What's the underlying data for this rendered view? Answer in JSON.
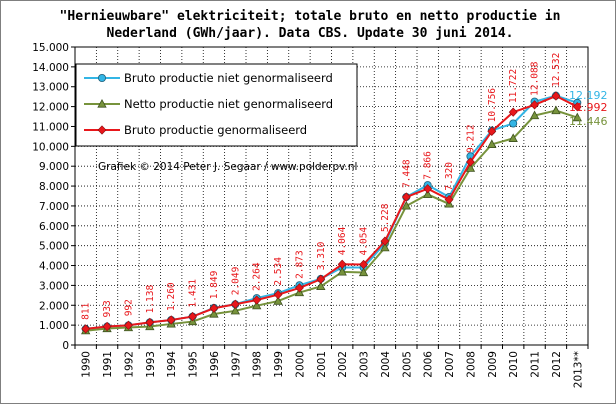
{
  "title_line1": "\"Hernieuwbare\"  elektriciteit; totale bruto en netto productie in",
  "title_line2": "Nederland (GWh/jaar). Data CBS. Update 30 juni 2014.",
  "credit": "Grafiek © 2014 Peter J. Segaar / www.polderpv.nl",
  "chart_data": {
    "type": "line",
    "title": "\"Hernieuwbare\"  elektriciteit; totale bruto en netto productie in Nederland (GWh/jaar). Data CBS. Update 30 juni 2014.",
    "categories": [
      "1990",
      "1991",
      "1992",
      "1993",
      "1994",
      "1995",
      "1996",
      "1997",
      "1998",
      "1999",
      "2000",
      "2001",
      "2002",
      "2003",
      "2004",
      "2005",
      "2006",
      "2007",
      "2008",
      "2009",
      "2010",
      "2011",
      "2012",
      "2013**"
    ],
    "y_ticks": [
      "0",
      "1.000",
      "2.000",
      "3.000",
      "4.000",
      "5.000",
      "6.000",
      "7.000",
      "8.000",
      "9.000",
      "10.000",
      "11.000",
      "12.000",
      "13.000",
      "14.000",
      "15.000"
    ],
    "ylim": [
      0,
      15000
    ],
    "grid": true,
    "legend_position": "top-left",
    "series": [
      {
        "name": "Bruto productie niet genormaliseerd",
        "color": "#33b5e5",
        "marker": "circle",
        "values": [
          810,
          930,
          990,
          1140,
          1260,
          1430,
          1870,
          2050,
          2360,
          2610,
          3010,
          3330,
          3900,
          3900,
          5120,
          7450,
          8050,
          7450,
          9500,
          10800,
          11150,
          12250,
          12550,
          12192
        ]
      },
      {
        "name": "Netto productie niet genormaliseerd",
        "color": "#77933c",
        "marker": "triangle",
        "values": [
          720,
          830,
          880,
          930,
          1060,
          1180,
          1560,
          1720,
          1980,
          2210,
          2640,
          2950,
          3680,
          3650,
          4900,
          7000,
          7580,
          7100,
          8900,
          10100,
          10400,
          11550,
          11800,
          11446
        ]
      },
      {
        "name": "Bruto productie genormaliseerd",
        "color": "#e8171b",
        "marker": "diamond",
        "values": [
          811,
          933,
          992,
          1138,
          1260,
          1431,
          1849,
          2049,
          2264,
          2534,
          2873,
          3310,
          4064,
          4054,
          5228,
          7448,
          7866,
          7320,
          9212,
          10756,
          11722,
          12088,
          12532,
          11992
        ]
      }
    ],
    "data_labels": [
      "811",
      "933",
      "992",
      "1.138",
      "1.260",
      "1.431",
      "1.849",
      "2.049",
      "2.264",
      "2.534",
      "2.873",
      "3.310",
      "4.064",
      "4.054",
      "5.228",
      "7.448",
      "7.866",
      "7.320",
      "9.212",
      "10.756",
      "11.722",
      "12.088",
      "12.532"
    ],
    "end_labels": [
      {
        "text": "12.192",
        "color": "#33b5e5"
      },
      {
        "text": "11.992",
        "color": "#e8171b"
      },
      {
        "text": "11.446",
        "color": "#77933c"
      }
    ]
  }
}
